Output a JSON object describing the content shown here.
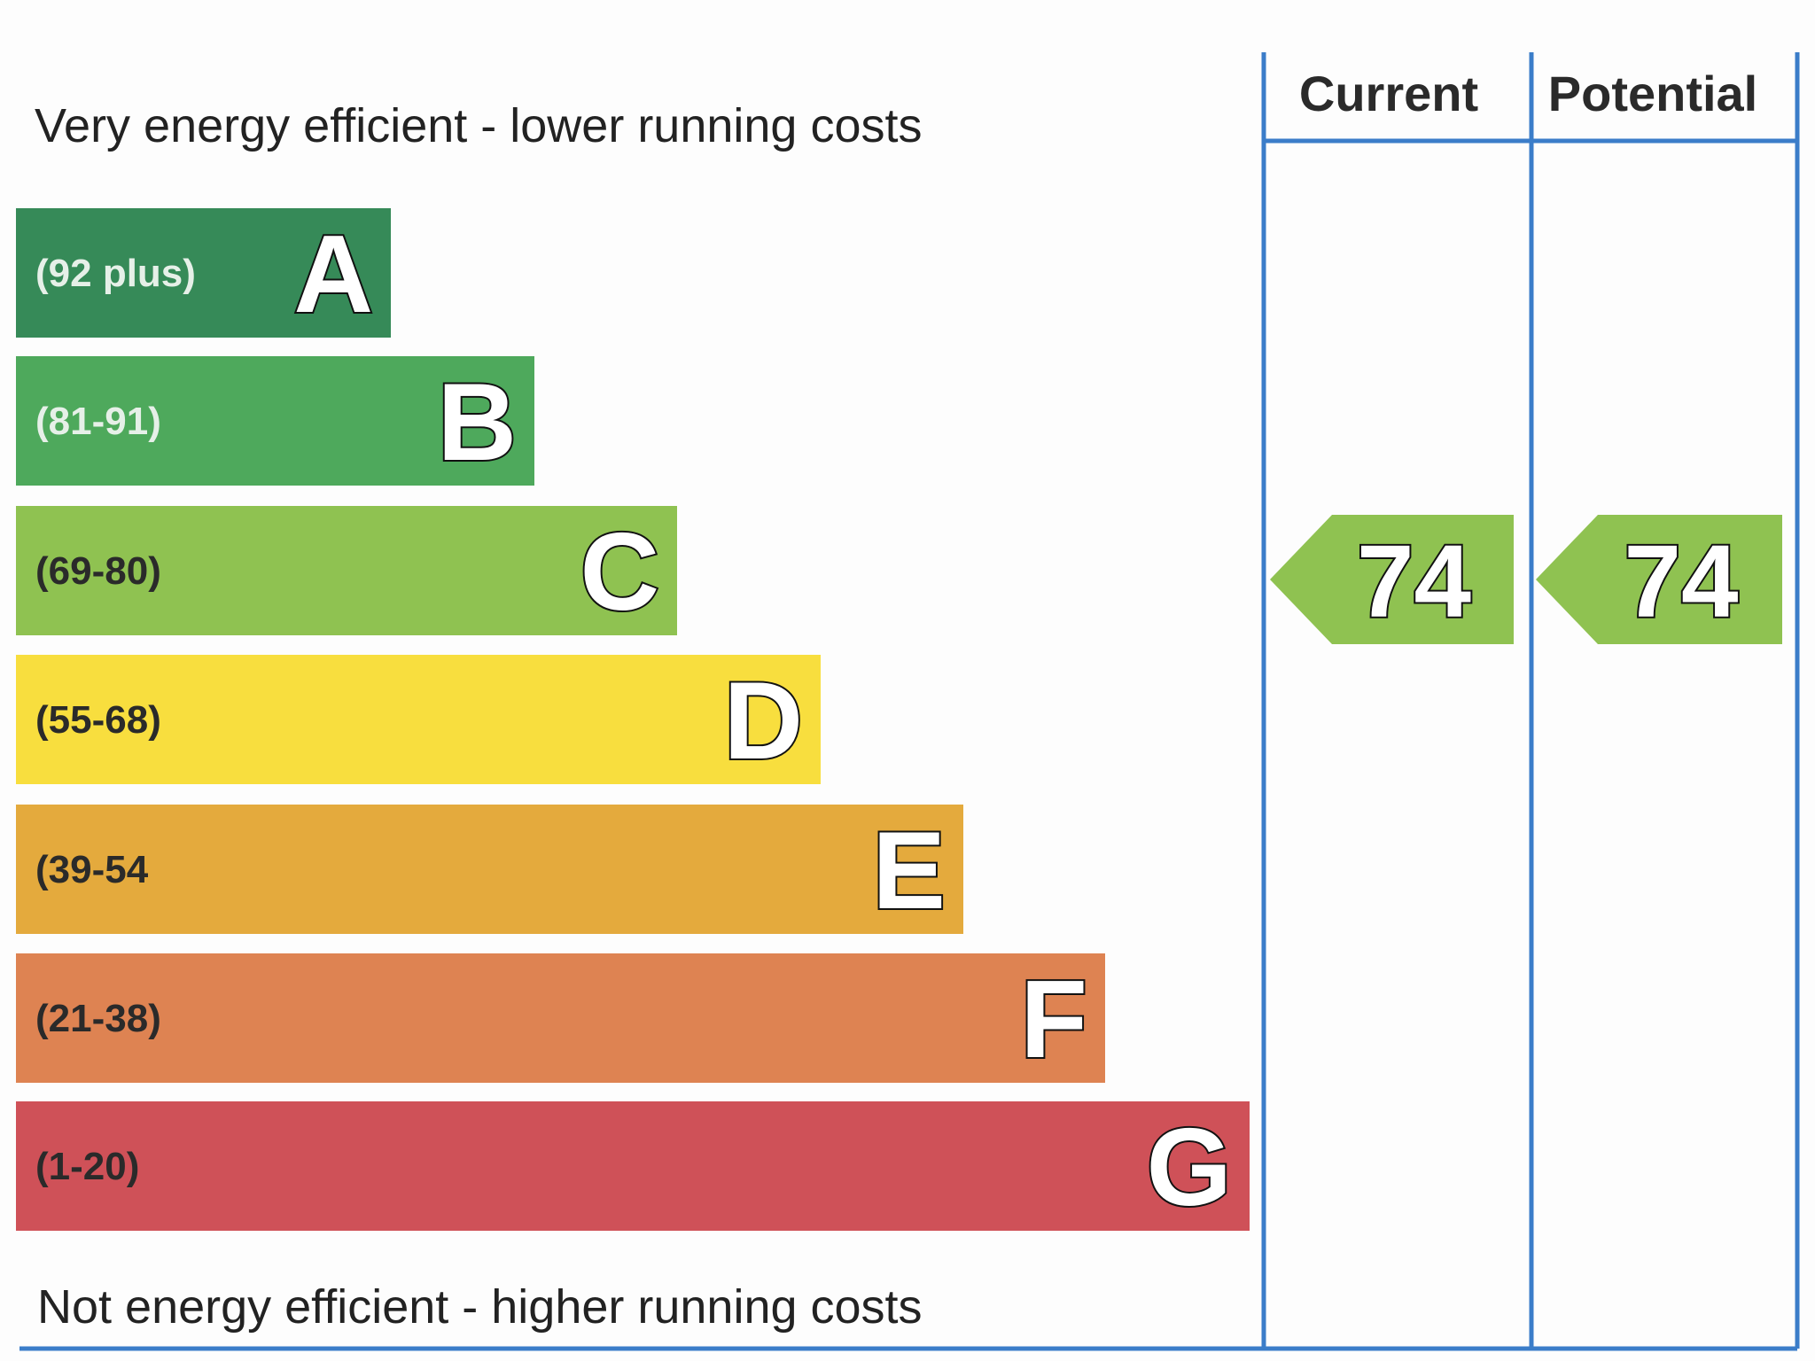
{
  "header": {
    "top_label": "Very energy efficient - lower running costs",
    "bottom_label": "Not energy efficient - higher running costs"
  },
  "columns": [
    "Current",
    "Potential"
  ],
  "bands": [
    {
      "range": "(92 plus)",
      "letter": "A",
      "color": "#368a58",
      "text_color": "#e6f0e8"
    },
    {
      "range": "(81-91)",
      "letter": "B",
      "color": "#4ea95c",
      "text_color": "#e6f0e8"
    },
    {
      "range": "(69-80)",
      "letter": "C",
      "color": "#8fc251",
      "text_color": "#2a2a2a"
    },
    {
      "range": "(55-68)",
      "letter": "D",
      "color": "#f8de3e",
      "text_color": "#2a2a2a"
    },
    {
      "range": "(39-54",
      "letter": "E",
      "color": "#e4aa3d",
      "text_color": "#2a2a2a"
    },
    {
      "range": "(21-38)",
      "letter": "F",
      "color": "#de8352",
      "text_color": "#2a2a2a"
    },
    {
      "range": "(1-20)",
      "letter": "G",
      "color": "#cf5158",
      "text_color": "#2a2a2a"
    }
  ],
  "ratings": {
    "current": "74",
    "potential": "74",
    "color": "#8fc251"
  }
}
